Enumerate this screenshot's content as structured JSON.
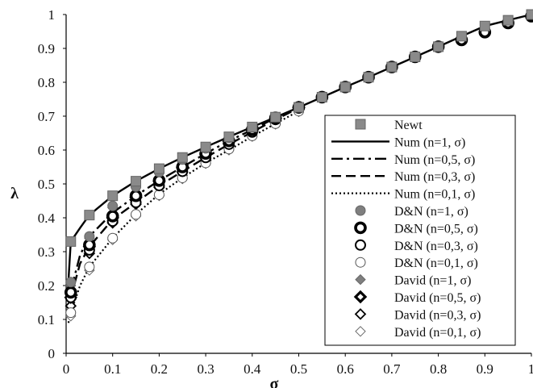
{
  "chart_data": {
    "type": "line",
    "xlabel": "σ",
    "ylabel": "λ",
    "xlim": [
      0,
      1
    ],
    "ylim": [
      0,
      1
    ],
    "x_ticks": [
      "0",
      "0.1",
      "0.2",
      "0.3",
      "0.4",
      "0.5",
      "0.6",
      "0.7",
      "0.8",
      "0.9",
      "1"
    ],
    "y_ticks": [
      "0",
      "0.1",
      "0.2",
      "0.3",
      "0.4",
      "0.5",
      "0.6",
      "0.7",
      "0.8",
      "0.9",
      "1"
    ],
    "grid": "none",
    "legend_position": "right",
    "series": [
      {
        "name": "Newt",
        "marker": "square",
        "style": "marker",
        "x": [
          0.01,
          0.05,
          0.1,
          0.15,
          0.2,
          0.25,
          0.3,
          0.35,
          0.4,
          0.45,
          0.5,
          0.55,
          0.6,
          0.65,
          0.7,
          0.75,
          0.8,
          0.85,
          0.9,
          0.95,
          1.0
        ],
        "y": [
          0.33,
          0.408,
          0.465,
          0.508,
          0.545,
          0.578,
          0.609,
          0.639,
          0.668,
          0.697,
          0.726,
          0.756,
          0.786,
          0.815,
          0.845,
          0.875,
          0.905,
          0.936,
          0.966,
          0.983,
          1.0
        ]
      },
      {
        "name": "Num (n=1, σ)",
        "style": "solid",
        "x": [
          0.005,
          0.01,
          0.03,
          0.05,
          0.1,
          0.15,
          0.2,
          0.25,
          0.3,
          0.35,
          0.4,
          0.45,
          0.5,
          0.55,
          0.6,
          0.65,
          0.7,
          0.75,
          0.8,
          0.85,
          0.9,
          0.95,
          1.0
        ],
        "y": [
          0.215,
          0.33,
          0.37,
          0.408,
          0.465,
          0.508,
          0.545,
          0.578,
          0.609,
          0.639,
          0.668,
          0.697,
          0.726,
          0.756,
          0.786,
          0.815,
          0.845,
          0.875,
          0.905,
          0.936,
          0.966,
          0.983,
          1.0
        ]
      },
      {
        "name": "Num (n=0,5, σ)",
        "style": "dashdot",
        "x": [
          0.005,
          0.01,
          0.03,
          0.05,
          0.1,
          0.15,
          0.2,
          0.25,
          0.3,
          0.35,
          0.4,
          0.45,
          0.5
        ],
        "y": [
          0.13,
          0.185,
          0.29,
          0.345,
          0.415,
          0.465,
          0.51,
          0.55,
          0.59,
          0.627,
          0.66,
          0.695,
          0.726
        ]
      },
      {
        "name": "Num (n=0,3, σ)",
        "style": "dashed",
        "x": [
          0.005,
          0.01,
          0.03,
          0.05,
          0.1,
          0.15,
          0.2,
          0.25,
          0.3,
          0.35,
          0.4,
          0.45,
          0.5
        ],
        "y": [
          0.12,
          0.165,
          0.265,
          0.315,
          0.395,
          0.445,
          0.495,
          0.537,
          0.578,
          0.617,
          0.653,
          0.69,
          0.724
        ]
      },
      {
        "name": "Num (n=0,1, σ)",
        "style": "dotted",
        "x": [
          0.005,
          0.01,
          0.03,
          0.05,
          0.1,
          0.15,
          0.2,
          0.25,
          0.3,
          0.35,
          0.4,
          0.45,
          0.5
        ],
        "y": [
          0.09,
          0.12,
          0.2,
          0.255,
          0.34,
          0.41,
          0.47,
          0.518,
          0.562,
          0.6,
          0.64,
          0.678,
          0.715
        ]
      },
      {
        "name": "D&N (n=1, σ)",
        "marker": "circle-filled-gray",
        "style": "marker",
        "x": [
          0.01,
          0.05,
          0.1,
          0.15,
          0.2,
          0.25,
          0.3,
          0.35,
          0.4,
          0.45,
          0.5
        ],
        "y": [
          0.21,
          0.345,
          0.435,
          0.492,
          0.535,
          0.572,
          0.605,
          0.636,
          0.667,
          0.697,
          0.726
        ]
      },
      {
        "name": "D&N (n=0,5, σ)",
        "marker": "circle-thick",
        "style": "marker",
        "x": [
          0.01,
          0.05,
          0.1,
          0.15,
          0.2,
          0.25,
          0.3,
          0.35,
          0.4,
          0.45,
          0.5,
          0.55,
          0.6,
          0.65,
          0.7,
          0.75,
          0.8,
          0.85,
          0.9,
          0.95,
          1.0
        ],
        "y": [
          0.18,
          0.32,
          0.405,
          0.465,
          0.51,
          0.55,
          0.59,
          0.627,
          0.66,
          0.695,
          0.726,
          0.756,
          0.786,
          0.815,
          0.845,
          0.875,
          0.905,
          0.925,
          0.948,
          0.975,
          0.995
        ]
      },
      {
        "name": "D&N (n=0,3, σ)",
        "marker": "circle-medium",
        "style": "marker",
        "x": [
          0.01,
          0.05,
          0.1,
          0.15,
          0.2,
          0.25,
          0.3,
          0.35,
          0.4,
          0.45,
          0.5
        ],
        "y": [
          0.165,
          0.305,
          0.39,
          0.445,
          0.495,
          0.537,
          0.578,
          0.617,
          0.653,
          0.69,
          0.724
        ]
      },
      {
        "name": "D&N (n=0,1, σ)",
        "marker": "circle-thin",
        "style": "marker",
        "x": [
          0.01,
          0.05,
          0.1,
          0.15,
          0.2,
          0.25,
          0.3,
          0.35,
          0.4,
          0.45,
          0.5
        ],
        "y": [
          0.12,
          0.255,
          0.34,
          0.41,
          0.468,
          0.518,
          0.562,
          0.603,
          0.642,
          0.678,
          0.715
        ]
      },
      {
        "name": "David (n=1, σ)",
        "marker": "diamond-filled-gray",
        "style": "marker",
        "x": [
          0.01,
          0.05,
          0.1,
          0.15,
          0.2,
          0.25,
          0.3,
          0.35,
          0.4,
          0.45,
          0.5
        ],
        "y": [
          0.2,
          0.34,
          0.43,
          0.49,
          0.535,
          0.57,
          0.605,
          0.636,
          0.667,
          0.697,
          0.726
        ]
      },
      {
        "name": "David (n=0,5, σ)",
        "marker": "diamond-thick",
        "style": "marker",
        "x": [
          0.01,
          0.05,
          0.1,
          0.15,
          0.2,
          0.25,
          0.3,
          0.35,
          0.4,
          0.45,
          0.5
        ],
        "y": [
          0.165,
          0.315,
          0.4,
          0.46,
          0.508,
          0.548,
          0.588,
          0.625,
          0.66,
          0.693,
          0.726
        ]
      },
      {
        "name": "David (n=0,3, σ)",
        "marker": "diamond-medium",
        "style": "marker",
        "x": [
          0.01,
          0.05,
          0.1,
          0.15,
          0.2,
          0.25,
          0.3,
          0.35,
          0.4,
          0.45,
          0.5
        ],
        "y": [
          0.14,
          0.295,
          0.385,
          0.44,
          0.49,
          0.535,
          0.575,
          0.615,
          0.652,
          0.688,
          0.722
        ]
      },
      {
        "name": "David (n=0,1, σ)",
        "marker": "diamond-thin",
        "style": "marker",
        "x": [
          0.01,
          0.05,
          0.1,
          0.15,
          0.2,
          0.25,
          0.3,
          0.35,
          0.4,
          0.45,
          0.5
        ],
        "y": [
          0.11,
          0.245,
          0.335,
          0.405,
          0.465,
          0.515,
          0.56,
          0.6,
          0.64,
          0.676,
          0.713
        ]
      }
    ]
  }
}
